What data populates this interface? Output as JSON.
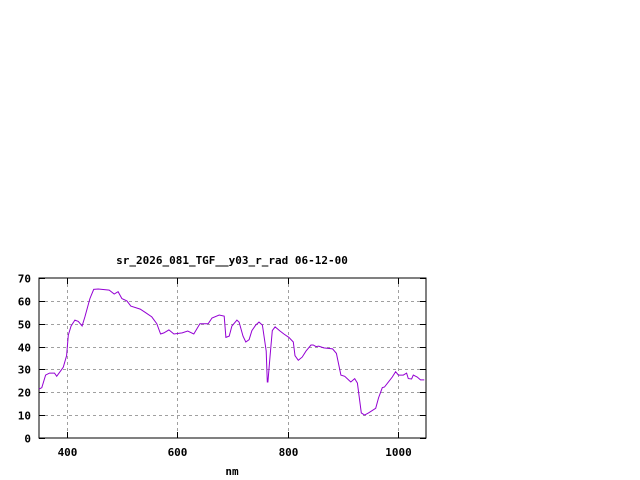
{
  "chart_data": {
    "type": "line",
    "title": "sr_2026_081_TGF__y03_r_rad 06-12-00",
    "xlabel": "nm",
    "ylabel": "",
    "xlim": [
      350,
      1050
    ],
    "ylim": [
      0,
      70
    ],
    "xticks": [
      400,
      600,
      800,
      1000
    ],
    "yticks": [
      0,
      10,
      20,
      30,
      40,
      50,
      60,
      70
    ],
    "grid": true,
    "line_color": "#9400d3",
    "series": [
      {
        "x": [
          350,
          355,
          362,
          369,
          378,
          382,
          391,
          394,
          400,
          403,
          408,
          415,
          421,
          428,
          433,
          442,
          449,
          457,
          477,
          486,
          493,
          500,
          509,
          516,
          533,
          542,
          554,
          563,
          570,
          576,
          585,
          594,
          609,
          619,
          630,
          641,
          656,
          663,
          676,
          685,
          688,
          694,
          699,
          706,
          708,
          712,
          719,
          724,
          730,
          735,
          742,
          748,
          754,
          761,
          763,
          764,
          768,
          772,
          777,
          786,
          793,
          802,
          810,
          813,
          819,
          826,
          833,
          842,
          846,
          851,
          856,
          865,
          881,
          888,
          896,
          903,
          914,
          921,
          926,
          933,
          939,
          946,
          959,
          964,
          971,
          975,
          989,
          995,
          1000,
          1009,
          1015,
          1018,
          1024,
          1027,
          1034,
          1040,
          1047
        ],
        "y": [
          21.4,
          22,
          27.5,
          28.4,
          28.4,
          27,
          30,
          31,
          36,
          45,
          49,
          51.6,
          51,
          49,
          53,
          61,
          65,
          65.2,
          64.7,
          63,
          64,
          61,
          60,
          57.7,
          56.4,
          55,
          53,
          50,
          45.5,
          46,
          47.3,
          45.5,
          46,
          46.8,
          45.5,
          50,
          50,
          52.5,
          53.8,
          53.3,
          44,
          44.6,
          49,
          51,
          51.6,
          50.7,
          44.6,
          42,
          43,
          47,
          49.4,
          50.7,
          49.4,
          38,
          24.5,
          24.5,
          36,
          47,
          48.6,
          46.8,
          45.5,
          44,
          42,
          36,
          34,
          35.4,
          38,
          40.7,
          40.7,
          40,
          40.2,
          39.4,
          39,
          37,
          27.5,
          27,
          24.5,
          26,
          24,
          11,
          10,
          11,
          13,
          17.5,
          22,
          22.3,
          26.7,
          29,
          27.5,
          27.5,
          28.4,
          26,
          25.8,
          27.5,
          26.7,
          25.4,
          25.4
        ]
      }
    ]
  }
}
